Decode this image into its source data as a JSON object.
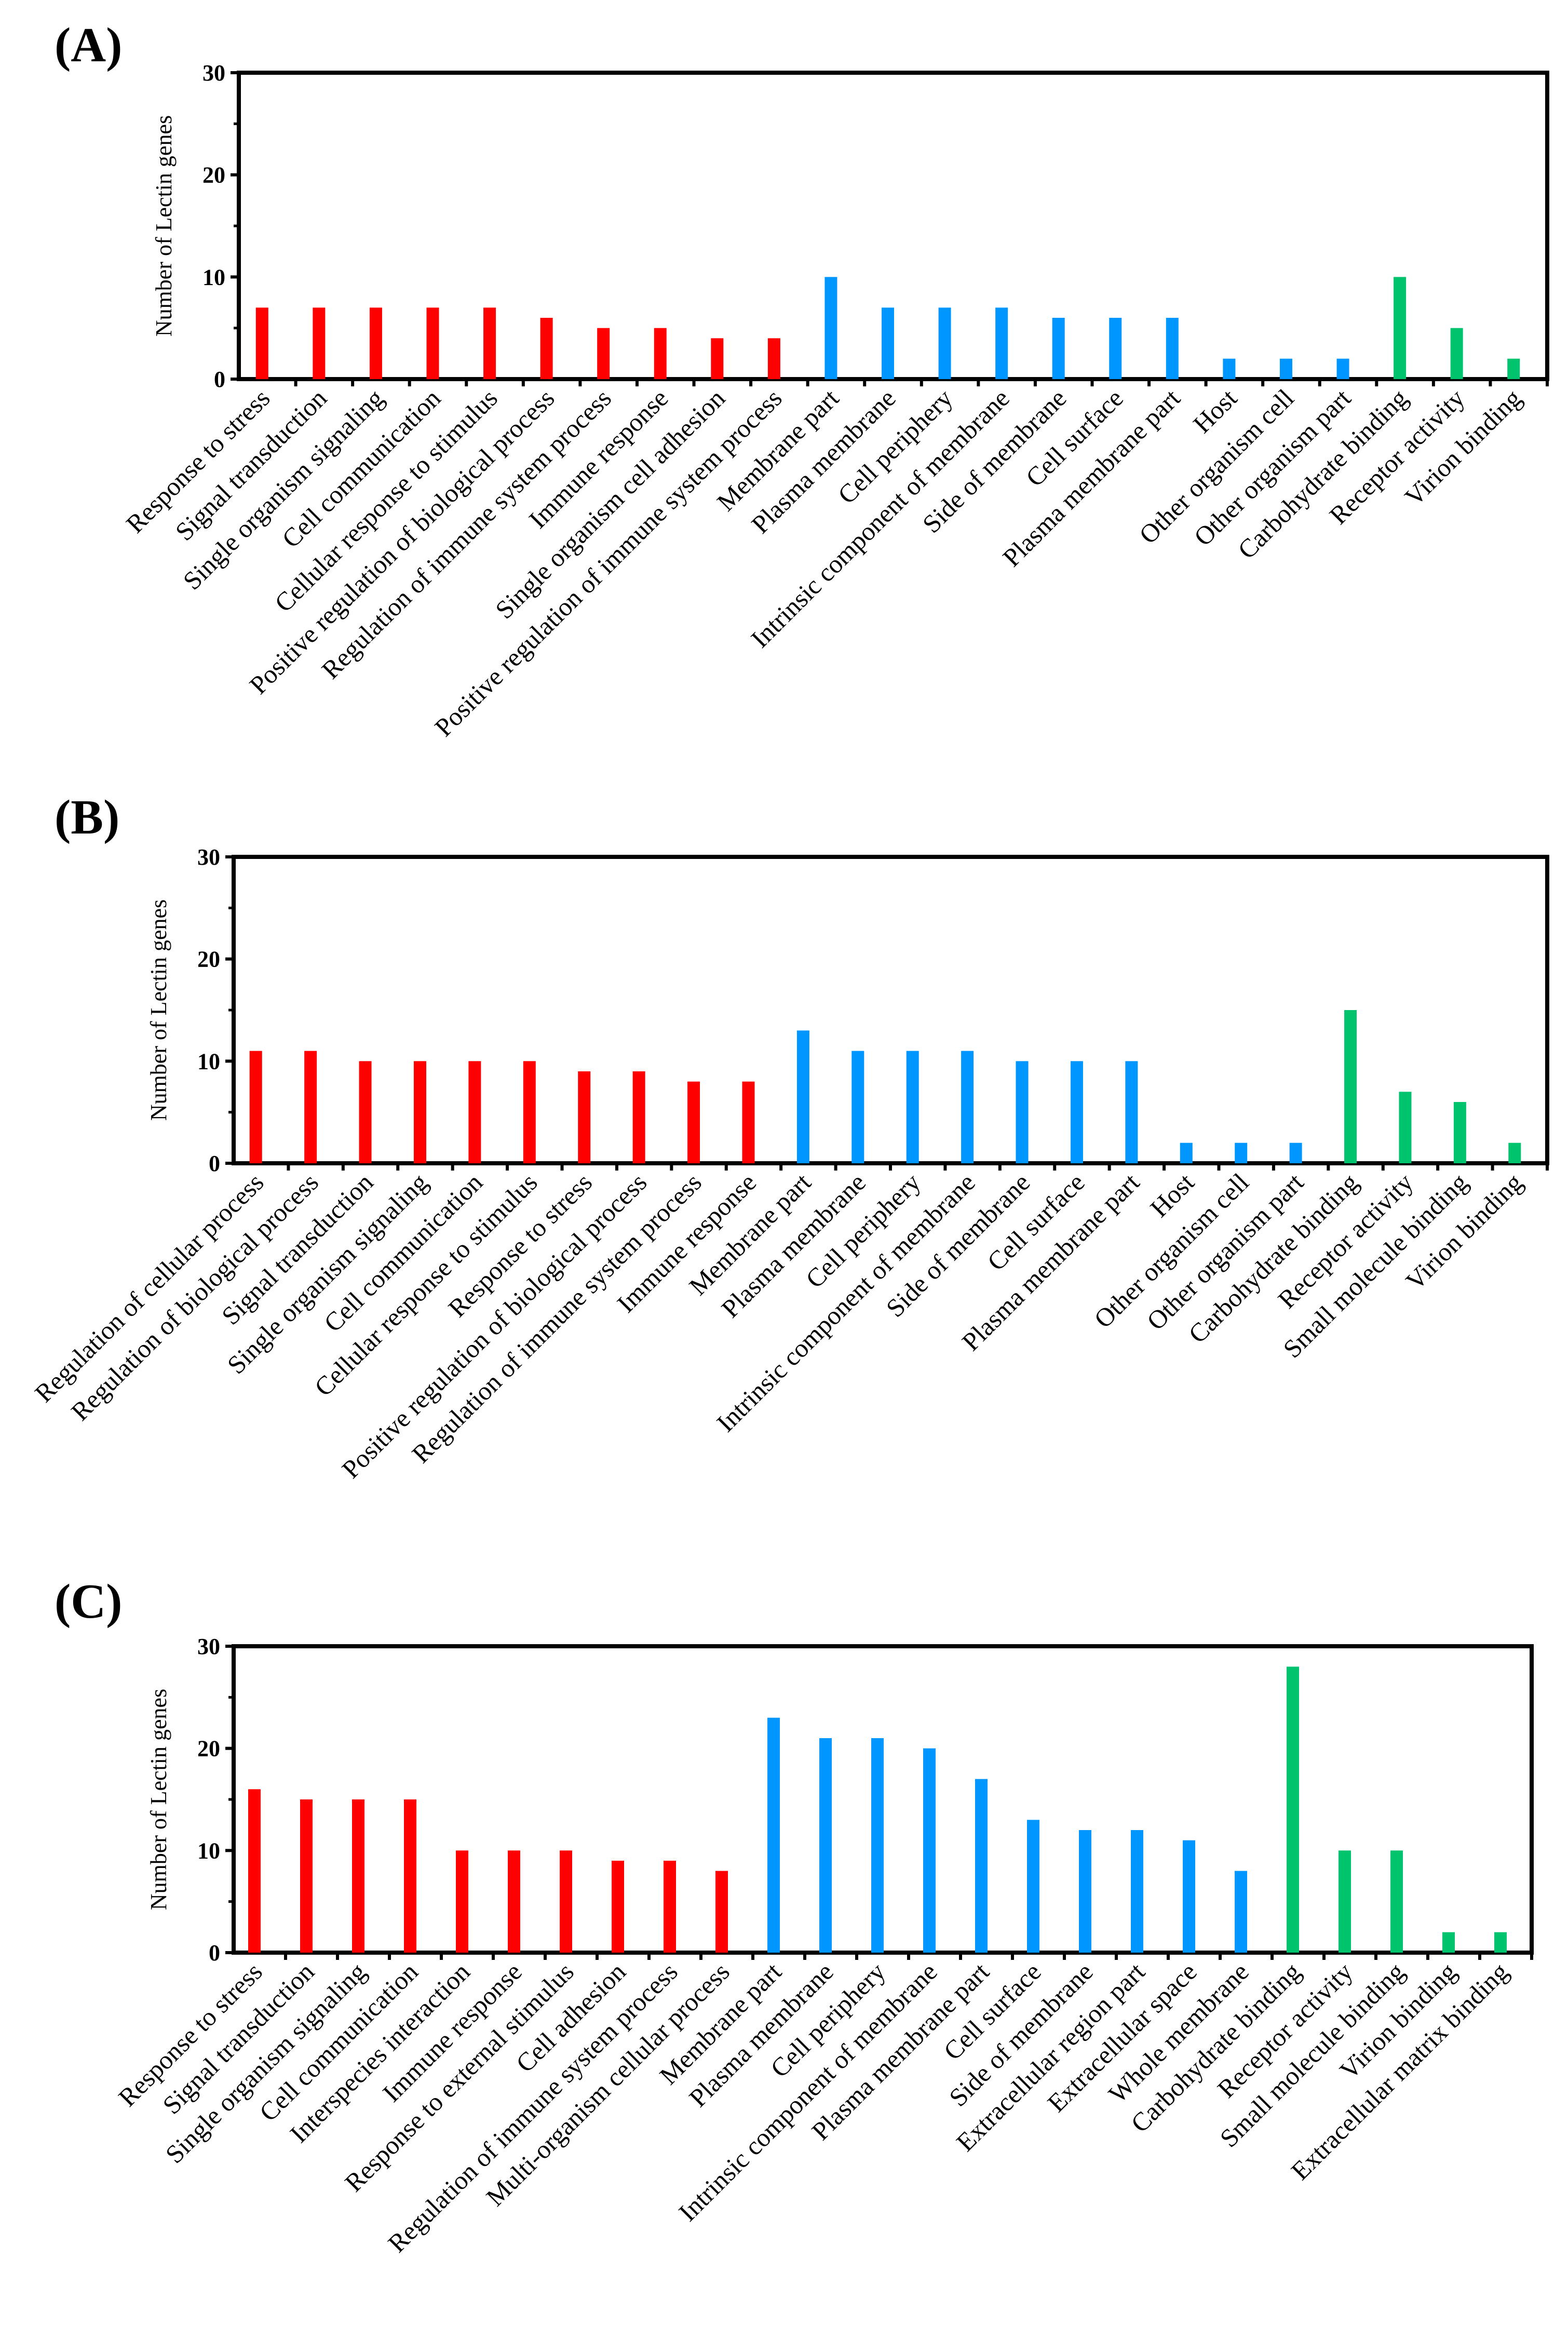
{
  "figure": {
    "colors": {
      "biological_process": "#ff0000",
      "cellular_component": "#0096ff",
      "molecular_function": "#00c36e",
      "axes": "#000000"
    }
  },
  "chart_data": [
    {
      "type": "bar",
      "panel_label": "(A)",
      "ylabel": "Number of Lectin genes",
      "ylim": [
        0,
        30
      ],
      "yticks": [
        0,
        10,
        20,
        30
      ],
      "categories": [
        "Response to stress",
        "Signal transduction",
        "Single organism signaling",
        "Cell communication",
        "Cellular response to stimulus",
        "Positive regulation of biological process",
        "Regulation of immune system process",
        "Immune response",
        "Single organism cell adhesion",
        "Positive regulation of immune system process",
        "Membrane part",
        "Plasma membrane",
        "Cell periphery",
        "Intrinsic component of membrane",
        "Side of membrane",
        "Cell surface",
        "Plasma membrane part",
        "Host",
        "Other organism cell",
        "Other organism part",
        "Carbohydrate binding",
        "Receptor activity",
        "Virion binding"
      ],
      "values": [
        7,
        7,
        7,
        7,
        7,
        6,
        5,
        5,
        4,
        4,
        10,
        7,
        7,
        7,
        6,
        6,
        6,
        2,
        2,
        2,
        10,
        5,
        2
      ],
      "groups": [
        "biological_process",
        "biological_process",
        "biological_process",
        "biological_process",
        "biological_process",
        "biological_process",
        "biological_process",
        "biological_process",
        "biological_process",
        "biological_process",
        "cellular_component",
        "cellular_component",
        "cellular_component",
        "cellular_component",
        "cellular_component",
        "cellular_component",
        "cellular_component",
        "cellular_component",
        "cellular_component",
        "cellular_component",
        "molecular_function",
        "molecular_function",
        "molecular_function"
      ]
    },
    {
      "type": "bar",
      "panel_label": "(B)",
      "ylabel": "Number of Lectin genes",
      "ylim": [
        0,
        30
      ],
      "yticks": [
        0,
        10,
        20,
        30
      ],
      "categories": [
        "Regulation of cellular process",
        "Regulation of biological process",
        "Signal transduction",
        "Single organism signaling",
        "Cell communication",
        "Cellular response to stimulus",
        "Response to stress",
        "Positive regulation of biological process",
        "Regulation of immune system process",
        "Immune response",
        "Membrane part",
        "Plasma membrane",
        "Cell periphery",
        "Intrinsic component of membrane",
        "Side of membrane",
        "Cell surface",
        "Plasma membrane part",
        "Host",
        "Other organism cell",
        "Other organism part",
        "Carbohydrate binding",
        "Receptor activity",
        "Small molecule binding",
        "Virion binding"
      ],
      "values": [
        11,
        11,
        10,
        10,
        10,
        10,
        9,
        9,
        8,
        8,
        13,
        11,
        11,
        11,
        10,
        10,
        10,
        2,
        2,
        2,
        15,
        7,
        6,
        2
      ],
      "groups": [
        "biological_process",
        "biological_process",
        "biological_process",
        "biological_process",
        "biological_process",
        "biological_process",
        "biological_process",
        "biological_process",
        "biological_process",
        "biological_process",
        "cellular_component",
        "cellular_component",
        "cellular_component",
        "cellular_component",
        "cellular_component",
        "cellular_component",
        "cellular_component",
        "cellular_component",
        "cellular_component",
        "cellular_component",
        "molecular_function",
        "molecular_function",
        "molecular_function",
        "molecular_function"
      ]
    },
    {
      "type": "bar",
      "panel_label": "(C)",
      "ylabel": "Number of Lectin genes",
      "ylim": [
        0,
        30
      ],
      "yticks": [
        0,
        10,
        20,
        30
      ],
      "categories": [
        "Response to stress",
        "Signal transduction",
        "Single organism signaling",
        "Cell communication",
        "Interspecies interaction",
        "Immune response",
        "Response to external stimulus",
        "Cell adhesion",
        "Regulation of immune system process",
        "Multi-organism cellular process",
        "Membrane part",
        "Plasma membrane",
        "Cell periphery",
        "Intrinsic component of membrane",
        "Plasma membrane part",
        "Cell surface",
        "Side of membrane",
        "Extracellular region part",
        "Extracellular space",
        "Whole membrane",
        "Carbohydrate binding",
        "Receptor activity",
        "Small molecule binding",
        "Virion binding",
        "Extracellular matrix binding"
      ],
      "values": [
        16,
        15,
        15,
        15,
        10,
        10,
        10,
        9,
        9,
        8,
        23,
        21,
        21,
        20,
        17,
        13,
        12,
        12,
        11,
        8,
        28,
        10,
        10,
        2,
        2
      ],
      "groups": [
        "biological_process",
        "biological_process",
        "biological_process",
        "biological_process",
        "biological_process",
        "biological_process",
        "biological_process",
        "biological_process",
        "biological_process",
        "biological_process",
        "cellular_component",
        "cellular_component",
        "cellular_component",
        "cellular_component",
        "cellular_component",
        "cellular_component",
        "cellular_component",
        "cellular_component",
        "cellular_component",
        "cellular_component",
        "molecular_function",
        "molecular_function",
        "molecular_function",
        "molecular_function",
        "molecular_function"
      ]
    }
  ]
}
